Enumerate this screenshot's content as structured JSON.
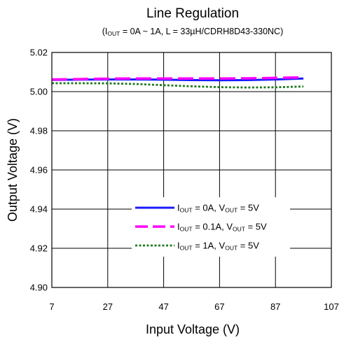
{
  "chart_data": {
    "type": "line",
    "title": "Line Regulation",
    "subtitle": {
      "prefix": "(I",
      "sub": "OUT",
      "suffix": " = 0A ~ 1A, L = 33µH/CDRH8D43-330NC)"
    },
    "xlabel": "Input Voltage (V)",
    "ylabel": "Output Voltage (V)",
    "xlim": [
      7,
      107
    ],
    "ylim": [
      4.9,
      5.02
    ],
    "xticks": [
      "7",
      "27",
      "47",
      "67",
      "87",
      "107"
    ],
    "yticks": [
      "4.90",
      "4.92",
      "4.94",
      "4.96",
      "4.98",
      "5.00",
      "5.02"
    ],
    "grid": true,
    "legend_position": "center-bottom",
    "series": [
      {
        "name": "I_OUT = 0A, V_OUT = 5V",
        "label_parts": [
          "I",
          "OUT",
          " = 0A, V",
          "OUT",
          " = 5V"
        ],
        "color": "#1a1aff",
        "style": "solid",
        "x": [
          7,
          17,
          27,
          37,
          47,
          57,
          67,
          77,
          87,
          97
        ],
        "y": [
          5.006,
          5.0061,
          5.0062,
          5.0062,
          5.0061,
          5.0059,
          5.0058,
          5.0059,
          5.0062,
          5.0067
        ]
      },
      {
        "name": "I_OUT = 0.1A, V_OUT = 5V",
        "label_parts": [
          "I",
          "OUT",
          " = 0.1A, V",
          "OUT",
          " = 5V"
        ],
        "color": "#ff00ff",
        "style": "dashed",
        "x": [
          7,
          17,
          27,
          37,
          47,
          57,
          67,
          77,
          87,
          97
        ],
        "y": [
          5.0062,
          5.0064,
          5.0066,
          5.0067,
          5.0067,
          5.0067,
          5.0067,
          5.0068,
          5.007,
          5.0073
        ]
      },
      {
        "name": "I_OUT = 1A, V_OUT = 5V",
        "label_parts": [
          "I",
          "OUT",
          " = 1A, V",
          "OUT",
          " = 5V"
        ],
        "color": "#1e7a1e",
        "style": "dotted",
        "x": [
          7,
          17,
          27,
          37,
          47,
          57,
          67,
          77,
          87,
          97
        ],
        "y": [
          5.0043,
          5.0043,
          5.0042,
          5.0039,
          5.0033,
          5.0027,
          5.0023,
          5.0021,
          5.0022,
          5.0026
        ]
      }
    ]
  }
}
